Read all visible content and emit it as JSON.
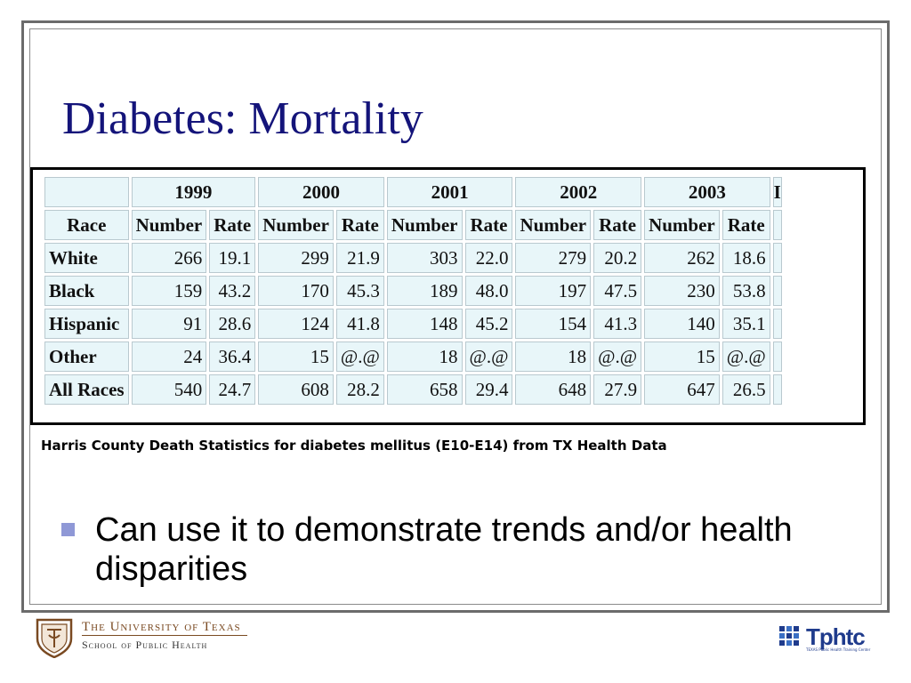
{
  "slide": {
    "title": "Diabetes: Mortality",
    "caption": "Harris County Death Statistics for diabetes mellitus (E10-E14) from TX Health Data",
    "bullet": "Can use it to demonstrate trends and/or health disparities"
  },
  "table": {
    "years": [
      "1999",
      "2000",
      "2001",
      "2002",
      "2003"
    ],
    "truncated_year_fragment": "I",
    "race_header": "Race",
    "number_header": "Number",
    "rate_header": "Rate",
    "rows": [
      {
        "race": "White",
        "values": [
          "266",
          "19.1",
          "299",
          "21.9",
          "303",
          "22.0",
          "279",
          "20.2",
          "262",
          "18.6"
        ]
      },
      {
        "race": "Black",
        "values": [
          "159",
          "43.2",
          "170",
          "45.3",
          "189",
          "48.0",
          "197",
          "47.5",
          "230",
          "53.8"
        ]
      },
      {
        "race": "Hispanic",
        "values": [
          "91",
          "28.6",
          "124",
          "41.8",
          "148",
          "45.2",
          "154",
          "41.3",
          "140",
          "35.1"
        ]
      },
      {
        "race": "Other",
        "values": [
          "24",
          "36.4",
          "15",
          "@.@",
          "18",
          "@.@",
          "18",
          "@.@",
          "15",
          "@.@"
        ]
      },
      {
        "race": "All Races",
        "values": [
          "540",
          "24.7",
          "608",
          "28.2",
          "658",
          "29.4",
          "648",
          "27.9",
          "647",
          "26.5"
        ]
      }
    ]
  },
  "footer": {
    "university_line": "The University of Texas",
    "school_line": "School of Public Health",
    "tphtc_logo_text": "Tphtc",
    "tphtc_subtext": "TEXAS Public Health Training Center"
  },
  "colors": {
    "title": "#14147a",
    "bullet": "#8f98d6",
    "table_cell": "#e8f6f9",
    "ut_brown": "#7a4a22",
    "tphtc_blue": "#1f3b8c"
  }
}
